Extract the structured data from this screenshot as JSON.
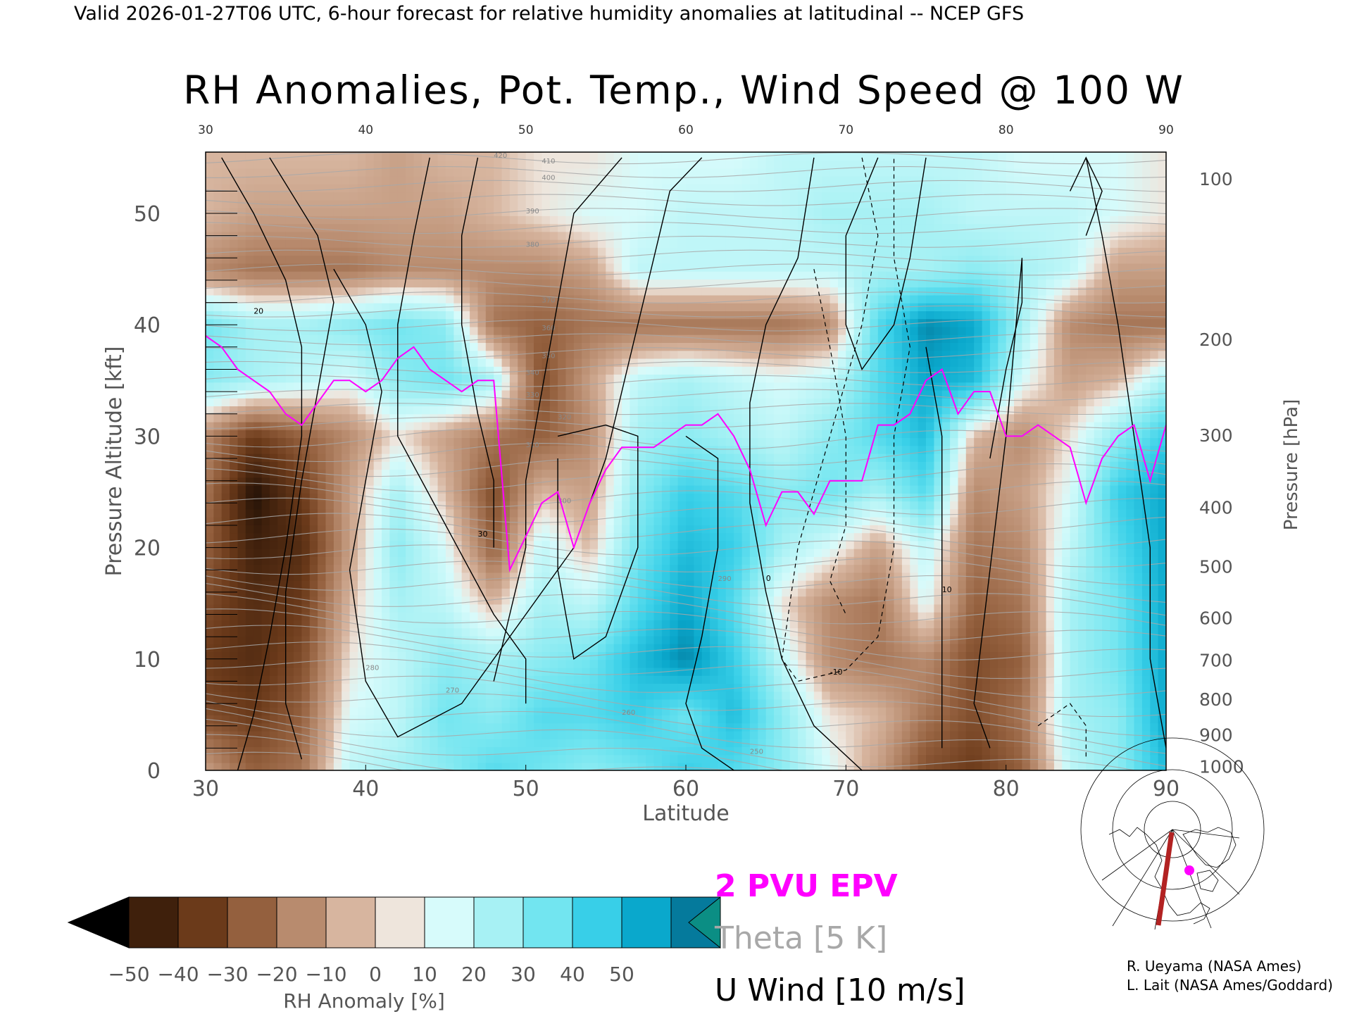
{
  "header": "Valid 2026-01-27T06 UTC, 6-hour forecast for relative humidity anomalies at latitudinal -- NCEP GFS",
  "chart_data": {
    "type": "heatmap",
    "title": "RH Anomalies, Pot. Temp., Wind Speed @ 100 W",
    "xlabel": "Latitude",
    "ylabel_left": "Pressure Altitude [kft]",
    "ylabel_right": "Pressure [hPa]",
    "xlim": [
      30,
      90
    ],
    "ylim_kft": [
      0,
      55.5
    ],
    "x_ticks": [
      "30",
      "40",
      "50",
      "60",
      "70",
      "80",
      "90"
    ],
    "y_ticks_left": [
      "0",
      "10",
      "20",
      "30",
      "40",
      "50"
    ],
    "y_ticks_right": [
      {
        "label": "1000",
        "kft": 0.35
      },
      {
        "label": "900",
        "kft": 3.2
      },
      {
        "label": "800",
        "kft": 6.4
      },
      {
        "label": "700",
        "kft": 9.9
      },
      {
        "label": "600",
        "kft": 13.7
      },
      {
        "label": "500",
        "kft": 18.3
      },
      {
        "label": "400",
        "kft": 23.6
      },
      {
        "label": "300",
        "kft": 30.1
      },
      {
        "label": "200",
        "kft": 38.7
      },
      {
        "label": "100",
        "kft": 53.1
      }
    ],
    "rh_anomaly_grid": {
      "lat": [
        30,
        33,
        36,
        39,
        42,
        45,
        48,
        51,
        54,
        57,
        60,
        63,
        66,
        69,
        72,
        75,
        78,
        81,
        84,
        87,
        90
      ],
      "kft": [
        0,
        5,
        10,
        15,
        20,
        25,
        30,
        35,
        40,
        45,
        50,
        55
      ],
      "values": [
        [
          -10,
          -25,
          -20,
          10,
          15,
          20,
          30,
          25,
          20,
          25,
          35,
          30,
          20,
          5,
          -10,
          -30,
          -35,
          -25,
          10,
          20,
          40
        ],
        [
          -30,
          -35,
          -25,
          5,
          10,
          25,
          20,
          30,
          30,
          35,
          25,
          40,
          20,
          0,
          -5,
          -20,
          -30,
          -20,
          15,
          20,
          45
        ],
        [
          -35,
          -40,
          -30,
          0,
          10,
          20,
          15,
          20,
          25,
          40,
          50,
          35,
          10,
          -15,
          -20,
          -15,
          -30,
          -25,
          15,
          25,
          45
        ],
        [
          -30,
          -40,
          -35,
          -5,
          15,
          10,
          -5,
          15,
          10,
          30,
          45,
          30,
          0,
          -15,
          -20,
          5,
          -25,
          -20,
          15,
          25,
          45
        ],
        [
          -25,
          -45,
          -40,
          -10,
          20,
          5,
          -25,
          10,
          -5,
          25,
          40,
          35,
          15,
          5,
          -10,
          10,
          -20,
          -15,
          10,
          30,
          45
        ],
        [
          -20,
          -50,
          -35,
          -10,
          15,
          -5,
          -30,
          -5,
          -10,
          20,
          35,
          30,
          20,
          25,
          15,
          30,
          -15,
          -10,
          5,
          35,
          45
        ],
        [
          -15,
          -35,
          -25,
          -15,
          0,
          -10,
          -20,
          -25,
          -15,
          15,
          20,
          15,
          10,
          20,
          30,
          40,
          -5,
          -15,
          0,
          20,
          35
        ],
        [
          20,
          15,
          10,
          5,
          20,
          25,
          15,
          -30,
          -10,
          10,
          15,
          10,
          5,
          10,
          30,
          45,
          40,
          5,
          -10,
          -5,
          15
        ],
        [
          25,
          15,
          15,
          20,
          25,
          20,
          -20,
          -25,
          -20,
          -20,
          -20,
          -20,
          -20,
          -15,
          30,
          50,
          45,
          15,
          -15,
          -20,
          -20
        ],
        [
          -15,
          -20,
          -20,
          -20,
          -15,
          -15,
          -15,
          -15,
          -10,
          10,
          10,
          10,
          10,
          10,
          15,
          15,
          20,
          15,
          10,
          -10,
          -10
        ],
        [
          -5,
          -10,
          -10,
          -10,
          -10,
          -10,
          -5,
          0,
          5,
          5,
          10,
          10,
          10,
          15,
          15,
          15,
          10,
          10,
          10,
          5,
          0
        ],
        [
          -5,
          -5,
          -5,
          -5,
          -10,
          -5,
          -5,
          0,
          0,
          5,
          5,
          5,
          10,
          10,
          10,
          10,
          10,
          5,
          5,
          5,
          0
        ]
      ]
    },
    "epv_2pvu": {
      "lat": [
        30,
        31,
        32,
        33,
        34,
        35,
        36,
        37,
        38,
        39,
        40,
        41,
        42,
        43,
        44,
        45,
        46,
        47,
        48,
        49,
        50,
        51,
        52,
        53,
        54,
        55,
        56,
        57,
        58,
        59,
        60,
        61,
        62,
        63,
        64,
        65,
        66,
        67,
        68,
        69,
        70,
        71,
        72,
        73,
        74,
        75,
        76,
        77,
        78,
        79,
        80,
        81,
        82,
        83,
        84,
        85,
        86,
        87,
        88,
        89,
        90
      ],
      "kft": [
        39,
        38,
        36,
        35,
        34,
        32,
        31,
        33,
        35,
        35,
        34,
        35,
        37,
        38,
        36,
        35,
        34,
        35,
        35,
        18,
        21,
        24,
        25,
        20,
        24,
        27,
        29,
        29,
        29,
        30,
        31,
        31,
        32,
        30,
        27,
        22,
        25,
        25,
        23,
        26,
        26,
        26,
        31,
        31,
        32,
        35,
        36,
        32,
        34,
        34,
        30,
        30,
        31,
        30,
        29,
        24,
        28,
        30,
        31,
        26,
        31
      ]
    },
    "theta_K": [
      "250",
      "260",
      "270",
      "280",
      "290",
      "300",
      "310",
      "320",
      "330",
      "340",
      "350",
      "360",
      "370",
      "380",
      "390",
      "400",
      "410",
      "420"
    ],
    "u_wind_labels": [
      "-10",
      "0",
      "10",
      "20",
      "30"
    ],
    "colorbar": {
      "label": "RH Anomaly [%]",
      "ticks": [
        "−50",
        "−40",
        "−30",
        "−20",
        "−10",
        "0",
        "10",
        "20",
        "30",
        "40",
        "50"
      ],
      "colors": [
        "#000000",
        "#3f200c",
        "#6b3a1a",
        "#94603e",
        "#b88b6e",
        "#d7b59f",
        "#eee5dc",
        "#d7fbfb",
        "#a7f1f4",
        "#72e5f0",
        "#38cfe8",
        "#0aa8cc",
        "#057a9c",
        "#0b8e84"
      ]
    }
  },
  "legend": {
    "epv": "2 PVU EPV",
    "theta": "Theta [5 K]",
    "wind": "U Wind [10 m/s]"
  },
  "credits": {
    "line1": "R. Ueyama (NASA Ames)",
    "line2": "L. Lait (NASA Ames/Goddard)"
  },
  "colors": {
    "epv": "#ff00ff",
    "theta": "#a8a8a8",
    "wind": "#000000",
    "map_track": "#b22222"
  },
  "icons": [
    "locator-map-icon"
  ]
}
